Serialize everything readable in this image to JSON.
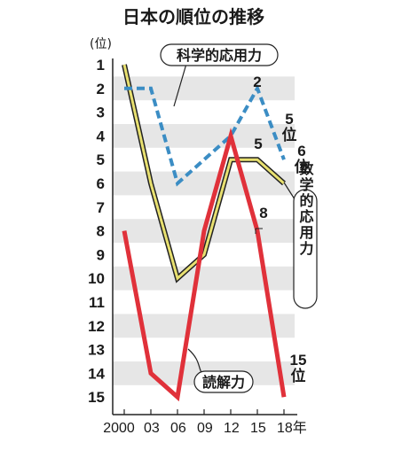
{
  "chart_data": {
    "type": "line",
    "title": "日本の順位の推移",
    "ylabel": "(位)",
    "x": [
      "2000",
      "03",
      "06",
      "09",
      "12",
      "15",
      "18年"
    ],
    "y_ticks": [
      "1",
      "2",
      "3",
      "4",
      "5",
      "6",
      "7",
      "8",
      "9",
      "10",
      "11",
      "12",
      "13",
      "14",
      "15"
    ],
    "ylim": [
      1,
      15
    ],
    "y_inverted": true,
    "grid_bands": true,
    "series": [
      {
        "name": "科学的応用力",
        "values": [
          2,
          2,
          6,
          5,
          4,
          2,
          5
        ],
        "color": "#3b8dc4",
        "style": "dashed"
      },
      {
        "name": "数学的応用力",
        "values": [
          1,
          6,
          10,
          9,
          5,
          5,
          6
        ],
        "color": "#e8e070",
        "style": "solid"
      },
      {
        "name": "読解力",
        "values": [
          8,
          14,
          15,
          8,
          4,
          8,
          15
        ],
        "color": "#e0313a",
        "style": "solid"
      }
    ],
    "annotations": {
      "sci_2015": "2",
      "sci_2018_num": "5",
      "sci_2018_unit": "位",
      "math_2015": "5",
      "math_2018_num": "6",
      "math_2018_unit": "位",
      "read_2015": "8",
      "read_2018_num": "15",
      "read_2018_unit": "位"
    }
  }
}
